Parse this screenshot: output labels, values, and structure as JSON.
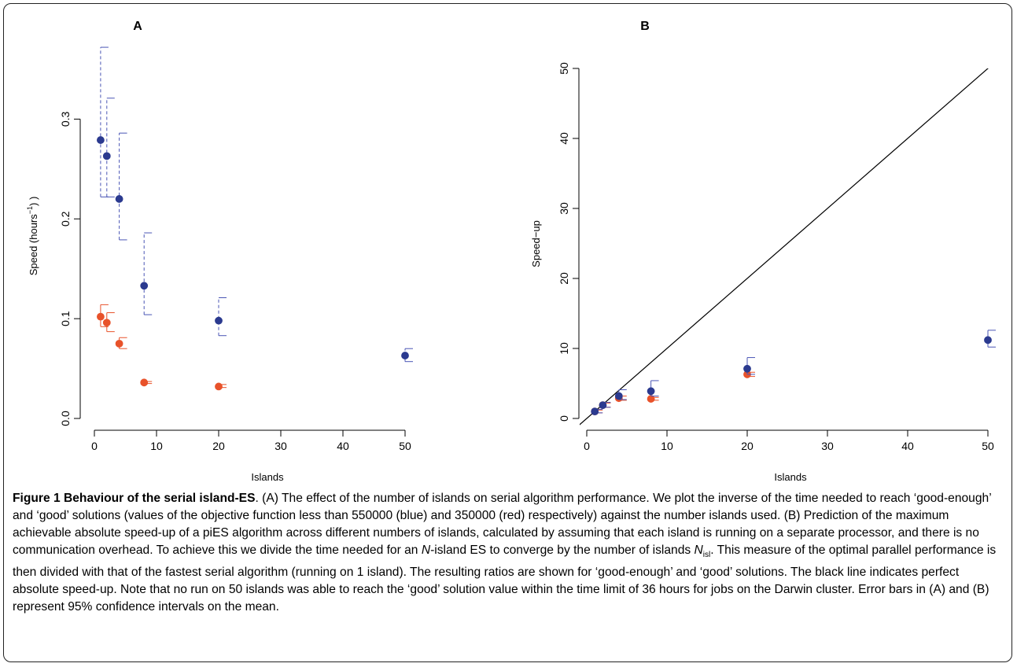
{
  "colors": {
    "blue": "#2b3a8f",
    "red": "#e8522a",
    "err_blue": "#4a55b5",
    "err_red": "#e8522a",
    "line": "#000000"
  },
  "chart_data": [
    {
      "type": "scatter",
      "panel_label": "A",
      "xlabel": "Islands",
      "ylabel_main": "Speed (hours",
      "ylabel_sup": "−1",
      "ylabel_tail": ") )",
      "xlim": [
        0,
        50
      ],
      "ylim": [
        0,
        0.35
      ],
      "xticks": [
        0,
        10,
        20,
        30,
        40,
        50
      ],
      "xtick_labels": [
        "0",
        "10",
        "20",
        "30",
        "40",
        "50"
      ],
      "yticks": [
        0.0,
        0.1,
        0.2,
        0.3
      ],
      "ytick_labels": [
        "0.0",
        "0.1",
        "0.2",
        "0.3"
      ],
      "grid": false,
      "series": [
        {
          "color_key": "blue",
          "err_color_key": "err_blue",
          "dashed_error": true,
          "x": [
            1,
            2,
            4,
            8,
            20,
            50
          ],
          "y": [
            0.279,
            0.263,
            0.22,
            0.133,
            0.098,
            0.063
          ],
          "lo": [
            0.222,
            0.222,
            0.179,
            0.104,
            0.083,
            0.057
          ],
          "hi": [
            0.372,
            0.321,
            0.286,
            0.186,
            0.121,
            0.07
          ]
        },
        {
          "color_key": "red",
          "err_color_key": "err_red",
          "dashed_error": false,
          "x": [
            1,
            2,
            4,
            8,
            20
          ],
          "y": [
            0.102,
            0.096,
            0.075,
            0.036,
            0.032
          ],
          "lo": [
            0.092,
            0.087,
            0.07,
            0.035,
            0.031
          ],
          "hi": [
            0.114,
            0.106,
            0.081,
            0.037,
            0.034
          ]
        }
      ]
    },
    {
      "type": "scatter",
      "panel_label": "B",
      "xlabel": "Islands",
      "ylabel": "Speed−up",
      "xlim": [
        0,
        50
      ],
      "ylim": [
        0,
        50
      ],
      "xticks": [
        0,
        10,
        20,
        30,
        40,
        50
      ],
      "xtick_labels": [
        "0",
        "10",
        "20",
        "30",
        "40",
        "50"
      ],
      "yticks": [
        0,
        10,
        20,
        30,
        40,
        50
      ],
      "ytick_labels": [
        "0",
        "10",
        "20",
        "30",
        "40",
        "50"
      ],
      "grid": false,
      "reference_line": {
        "slope": 1,
        "intercept": 0
      },
      "series": [
        {
          "color_key": "red",
          "err_color_key": "err_red",
          "dashed_error": false,
          "x": [
            1,
            2,
            4,
            8,
            20
          ],
          "y": [
            1.0,
            1.9,
            2.9,
            2.8,
            6.3
          ],
          "lo": [
            0.8,
            1.6,
            2.6,
            2.6,
            6.0
          ],
          "hi": [
            1.2,
            2.2,
            3.2,
            3.0,
            6.6
          ]
        },
        {
          "color_key": "blue",
          "err_color_key": "err_blue",
          "dashed_error": false,
          "x": [
            1,
            2,
            4,
            8,
            20,
            50
          ],
          "y": [
            1.0,
            1.9,
            3.2,
            3.9,
            7.1,
            11.2
          ],
          "lo": [
            0.8,
            1.6,
            2.7,
            3.2,
            6.3,
            10.2
          ],
          "hi": [
            1.3,
            2.3,
            4.1,
            5.4,
            8.7,
            12.6
          ]
        }
      ]
    }
  ],
  "caption": {
    "title": "Figure 1 Behaviour of the serial island-ES",
    "body_1": ". (A) The effect of the number of islands on serial algorithm performance. We plot the inverse of the time needed to reach ‘good-enough’ and ‘good’ solutions (values of the objective function less than 550000 (blue) and 350000 (red) respectively) against the number islands used. (B) Prediction of the maximum achievable absolute speed-up of a piES algorithm across different numbers of islands, calculated by assuming that each island is running on a separate processor, and there is no communication overhead. To achieve this we divide the time needed for an ",
    "n_italic": "N",
    "body_2": "-island ES to converge by the number of islands ",
    "nisl_italic": "N",
    "nisl_sub": "isl",
    "body_3": ". This measure of the optimal parallel performance is then divided with that of the fastest serial algorithm (running on 1 island). The resulting ratios are shown for ‘good-enough’ and ‘good’ solutions. The black line indicates perfect absolute speed-up. Note that no run on 50 islands was able to reach the ‘good’ solution value within the time limit of 36 hours for jobs on the Darwin cluster. Error bars in (A) and (B) represent 95% confidence intervals on the mean."
  }
}
